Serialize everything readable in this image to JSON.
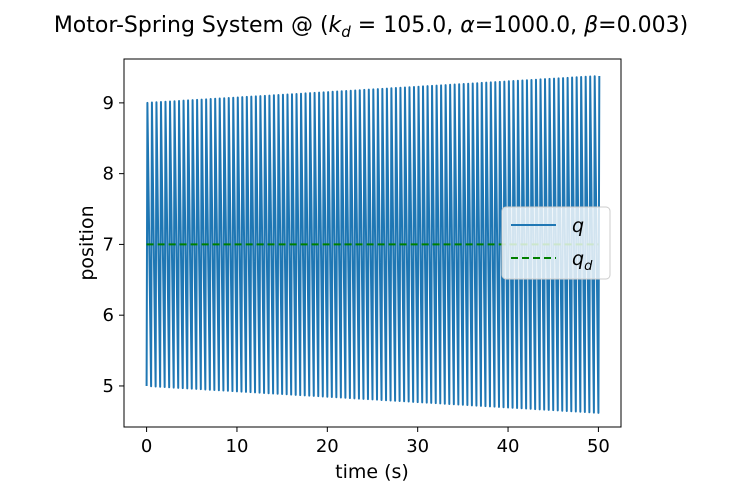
{
  "chart_data": {
    "type": "line",
    "title": "Motor-Spring System @ (k_d = 105.0, α=1000.0, β=0.003)",
    "title_parts": {
      "prefix": "Motor-Spring System @ (",
      "k_var": "k",
      "k_sub": "d",
      "k_eq": " = 105.0, ",
      "alpha": "α",
      "alpha_eq": "=1000.0, ",
      "beta": "β",
      "beta_eq": "=0.003)"
    },
    "xlabel": "time (s)",
    "ylabel": "position",
    "xlim": [
      -2.5,
      52.5
    ],
    "ylim": [
      4.42,
      9.62
    ],
    "xticks": [
      0,
      10,
      20,
      30,
      40,
      50
    ],
    "yticks": [
      5,
      6,
      7,
      8,
      9
    ],
    "grid": false,
    "legend_position": "center-right",
    "series": [
      {
        "name": "q",
        "color": "#1f77b4",
        "style": "solid",
        "pattern": "oscillation",
        "t_start": 0,
        "t_end": 50,
        "cycles": 100,
        "start_min": 5.0,
        "start_max": 9.0,
        "end_min": 4.62,
        "end_max": 9.38
      },
      {
        "name": "q",
        "name_sub": "d",
        "color": "#008000",
        "style": "dashed",
        "x": [
          0,
          50
        ],
        "y": [
          7.0,
          7.0
        ]
      }
    ]
  }
}
